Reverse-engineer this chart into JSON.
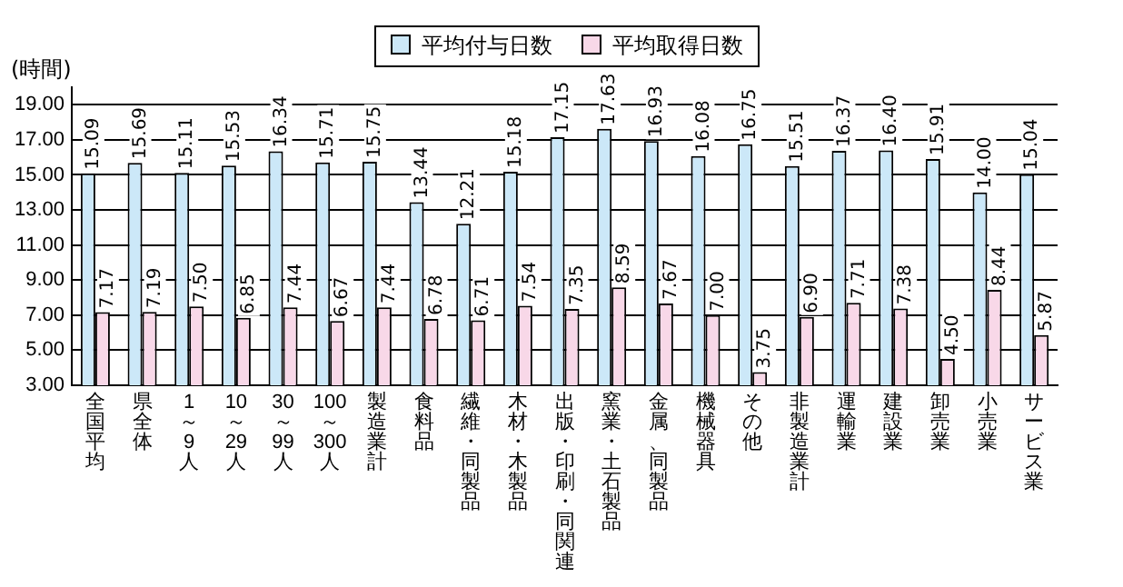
{
  "chart_data": {
    "type": "bar",
    "ylabel": "(時間)",
    "categories": [
      "全国平均",
      "県全体",
      "1～9人",
      "10～29人",
      "30～99人",
      "100～300人",
      "製造業計",
      "食料品",
      "繊維・同製品",
      "木材・木製品",
      "出版・印刷・同関連",
      "窯業・土石製品",
      "金属、同製品",
      "機械器具",
      "その他",
      "非製造業計",
      "運輸業",
      "建設業",
      "卸売業",
      "小売業",
      "サービス業"
    ],
    "series": [
      {
        "name": "平均付与日数",
        "color": "#cce8f8",
        "values": [
          15.09,
          15.69,
          15.11,
          15.53,
          16.34,
          15.71,
          15.75,
          13.44,
          12.21,
          15.18,
          17.15,
          17.63,
          16.93,
          16.08,
          16.75,
          15.51,
          16.37,
          16.4,
          15.91,
          14.0,
          15.04
        ],
        "value_labels": [
          "15.09",
          "15.69",
          "15.11",
          "15.53",
          "16.34",
          "15.71",
          "15.75",
          "13.44",
          "12.21",
          "15.18",
          "17.15",
          "17.63",
          "16.93",
          "16.08",
          "16.75",
          "15.51",
          "16.37",
          "16.40",
          "15.91",
          "14.00",
          "15.04"
        ]
      },
      {
        "name": "平均取得日数",
        "color": "#f8d8e8",
        "values": [
          7.17,
          7.19,
          7.5,
          6.85,
          7.44,
          6.67,
          7.44,
          6.78,
          6.71,
          7.54,
          7.35,
          8.59,
          7.67,
          7.0,
          3.75,
          6.9,
          7.71,
          7.38,
          4.5,
          8.44,
          5.87
        ],
        "value_labels": [
          "7.17",
          "7.19",
          "7.50",
          "6.85",
          "7.44",
          "6.67",
          "7.44",
          "6.78",
          "6.71",
          "7.54",
          "7.35",
          "8.59",
          "7.67",
          "7.00",
          "3.75",
          "6.90",
          "7.71",
          "7.38",
          "4.50",
          "8.44",
          "5.87"
        ]
      }
    ],
    "ylim": [
      3,
      20
    ],
    "yticks": [
      {
        "value": 3,
        "label": "3.00"
      },
      {
        "value": 5,
        "label": "5.00"
      },
      {
        "value": 7,
        "label": "7.00"
      },
      {
        "value": 9,
        "label": "9.00"
      },
      {
        "value": 11,
        "label": "11.00"
      },
      {
        "value": 13,
        "label": "13.00"
      },
      {
        "value": 15,
        "label": "15.00"
      },
      {
        "value": 17,
        "label": "17.00"
      },
      {
        "value": 19,
        "label": "19.00"
      }
    ],
    "grid": "y",
    "legend": "top"
  }
}
